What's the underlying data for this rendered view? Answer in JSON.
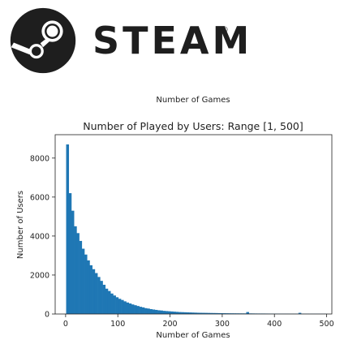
{
  "brand": {
    "name": "STEAM",
    "mark": "®",
    "logo_icon": "steam-logo-icon",
    "colors": {
      "logo": "#1e1e1e",
      "background": "#ffffff"
    }
  },
  "chart_data": {
    "type": "bar",
    "subtitle": "Number of Games",
    "title": "Number of Played by Users: Range [1, 500]",
    "xlabel": "Number of Games",
    "ylabel": "Number of Users",
    "xlim": [
      -20,
      510
    ],
    "ylim": [
      0,
      9200
    ],
    "xticks": [
      0,
      100,
      200,
      300,
      400,
      500
    ],
    "yticks": [
      0,
      2000,
      4000,
      6000,
      8000
    ],
    "grid": false,
    "bar_color": "#1f77b4",
    "bin_width": 5,
    "bin_starts": [
      1,
      6,
      11,
      16,
      21,
      26,
      31,
      36,
      41,
      46,
      51,
      56,
      61,
      66,
      71,
      76,
      81,
      86,
      91,
      96,
      101,
      106,
      111,
      116,
      121,
      126,
      131,
      136,
      141,
      146,
      151,
      156,
      161,
      166,
      171,
      176,
      181,
      186,
      191,
      196,
      201,
      206,
      211,
      216,
      221,
      226,
      231,
      236,
      241,
      246,
      251,
      256,
      261,
      266,
      271,
      276,
      281,
      286,
      291,
      296,
      301,
      306,
      311,
      316,
      321,
      326,
      331,
      336,
      341,
      346,
      351,
      356,
      361,
      366,
      371,
      376,
      381,
      386,
      391,
      396,
      401,
      406,
      411,
      416,
      421,
      426,
      431,
      436,
      441,
      446,
      451,
      456,
      461,
      466,
      471,
      476,
      481,
      486,
      491,
      496
    ],
    "values": [
      8700,
      6200,
      5300,
      4500,
      4150,
      3750,
      3350,
      3050,
      2750,
      2500,
      2300,
      2100,
      1900,
      1700,
      1500,
      1300,
      1180,
      1050,
      950,
      860,
      780,
      720,
      650,
      590,
      540,
      490,
      450,
      410,
      370,
      340,
      300,
      280,
      250,
      230,
      210,
      190,
      180,
      160,
      150,
      140,
      130,
      120,
      110,
      100,
      95,
      90,
      85,
      80,
      75,
      70,
      65,
      62,
      60,
      58,
      55,
      52,
      50,
      48,
      45,
      42,
      40,
      38,
      36,
      35,
      34,
      33,
      32,
      31,
      30,
      100,
      30,
      28,
      26,
      25,
      24,
      24,
      23,
      22,
      21,
      20,
      20,
      19,
      19,
      18,
      18,
      17,
      17,
      16,
      16,
      60,
      15,
      15,
      15,
      14,
      14,
      13,
      13,
      12,
      12,
      11
    ]
  }
}
